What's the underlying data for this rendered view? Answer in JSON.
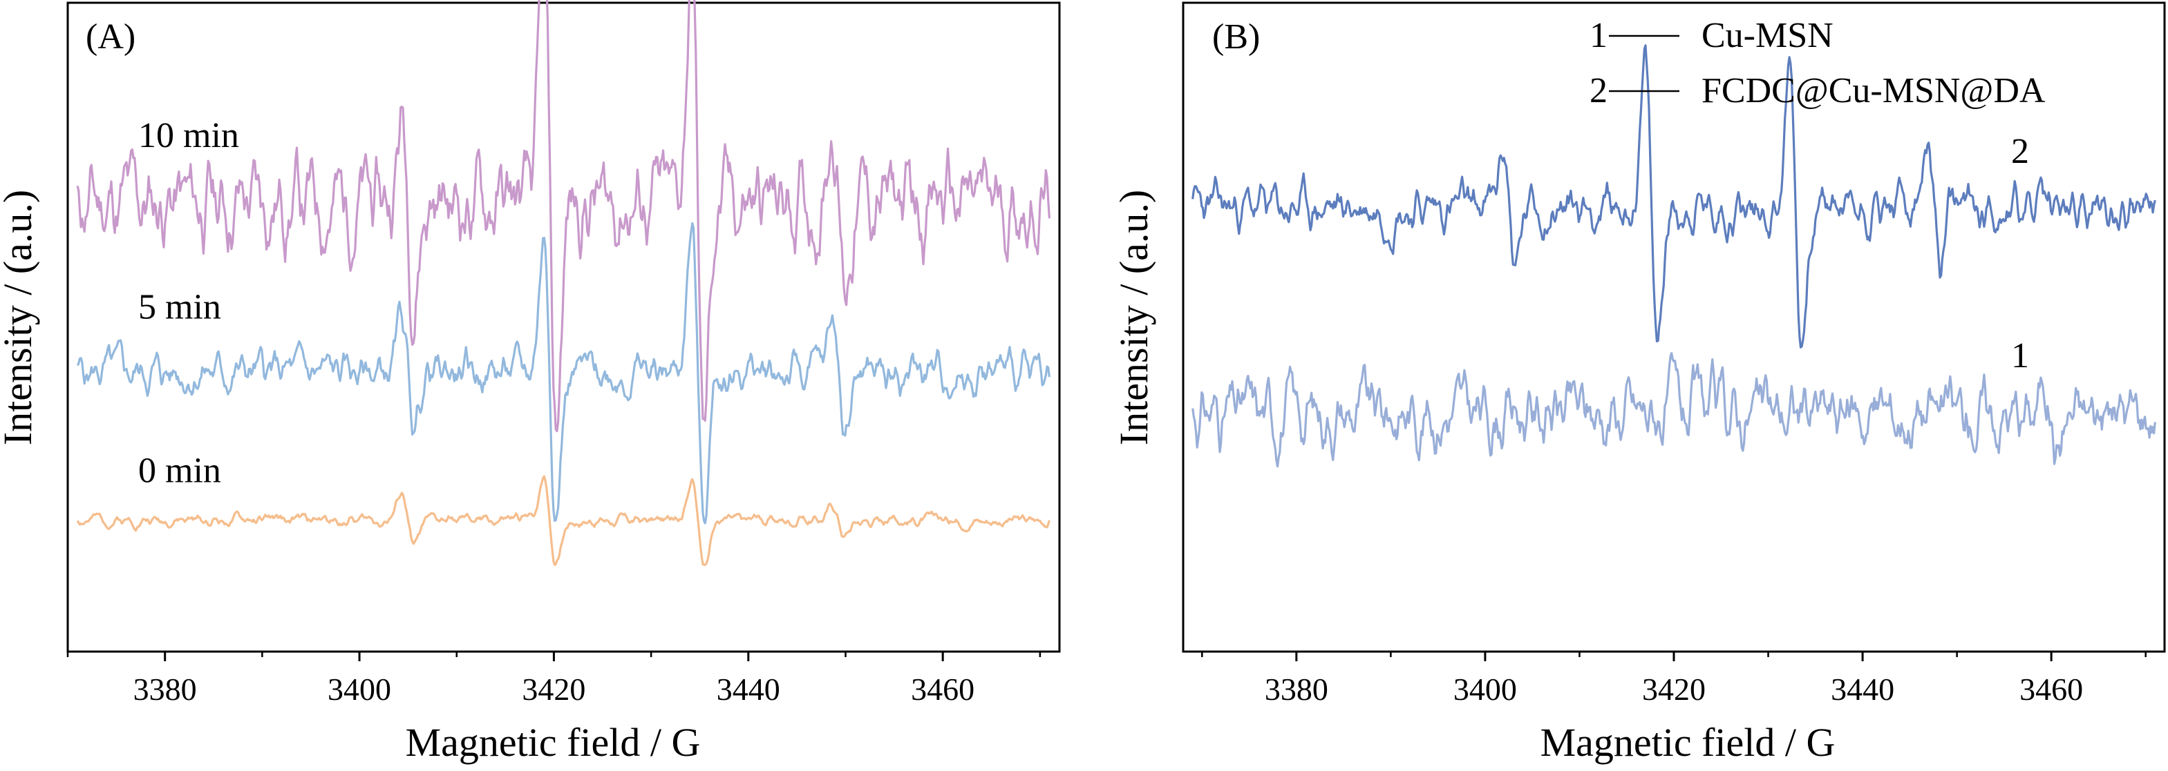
{
  "chart_data": [
    {
      "panel_label": "(A)",
      "type": "line",
      "xlabel": "Magnetic field / G",
      "ylabel": "Intensity / (a.u.)",
      "xlim": [
        3370,
        3472
      ],
      "xticks": [
        3380,
        3400,
        3420,
        3440,
        3460
      ],
      "grid": false,
      "x_range": [
        3371,
        3471
      ],
      "series": [
        {
          "name": "10 min",
          "color": "#c899cb",
          "offset": 2.0,
          "noise": 0.32,
          "seed": 11,
          "peaks": [
            {
              "x": 3405,
              "a": 0.55
            },
            {
              "x": 3419.6,
              "a": 1.55
            },
            {
              "x": 3434.8,
              "a": 1.6
            },
            {
              "x": 3449.3,
              "a": 0.55
            }
          ]
        },
        {
          "name": "5 min",
          "color": "#92b8dd",
          "offset": 0.93,
          "noise": 0.14,
          "seed": 5,
          "peaks": [
            {
              "x": 3405,
              "a": 0.35
            },
            {
              "x": 3419.6,
              "a": 0.9
            },
            {
              "x": 3434.8,
              "a": 0.95
            },
            {
              "x": 3449.3,
              "a": 0.35
            }
          ]
        },
        {
          "name": "0 min",
          "color": "#f5bd8c",
          "offset": 0.0,
          "noise": 0.04,
          "seed": 2,
          "peaks": [
            {
              "x": 3405,
              "a": 0.17
            },
            {
              "x": 3419.6,
              "a": 0.3
            },
            {
              "x": 3434.8,
              "a": 0.28
            },
            {
              "x": 3449.3,
              "a": 0.1
            }
          ]
        }
      ],
      "ylim": [
        -0.55,
        3.1
      ]
    },
    {
      "panel_label": "(B)",
      "type": "line",
      "xlabel": "Magnetic field / G",
      "ylabel": "Intensity / (a.u.)",
      "xlim": [
        3368,
        3472
      ],
      "xticks": [
        3380,
        3400,
        3420,
        3440,
        3460
      ],
      "grid": false,
      "x_range": [
        3369,
        3471
      ],
      "legend": [
        {
          "number": "1",
          "name": "Cu-MSN"
        },
        {
          "number": "2",
          "name": "FCDC@Cu-MSN@DA"
        }
      ],
      "series": [
        {
          "name": "2",
          "color": "#5c7dbd",
          "offset": 1.62,
          "noise": 0.2,
          "seed": 23,
          "peaks": [
            {
              "x": 3402.6,
              "a": 0.5
            },
            {
              "x": 3417.6,
              "a": 1.15
            },
            {
              "x": 3432.9,
              "a": 1.15
            },
            {
              "x": 3447.6,
              "a": 0.5
            }
          ]
        },
        {
          "name": "1",
          "color": "#98aed8",
          "offset": 0.0,
          "noise": 0.3,
          "seed": 31,
          "peaks": [
            {
              "x": 3460,
              "a": 0.3
            }
          ]
        }
      ],
      "ylim": [
        -1.55,
        3.05
      ]
    }
  ]
}
